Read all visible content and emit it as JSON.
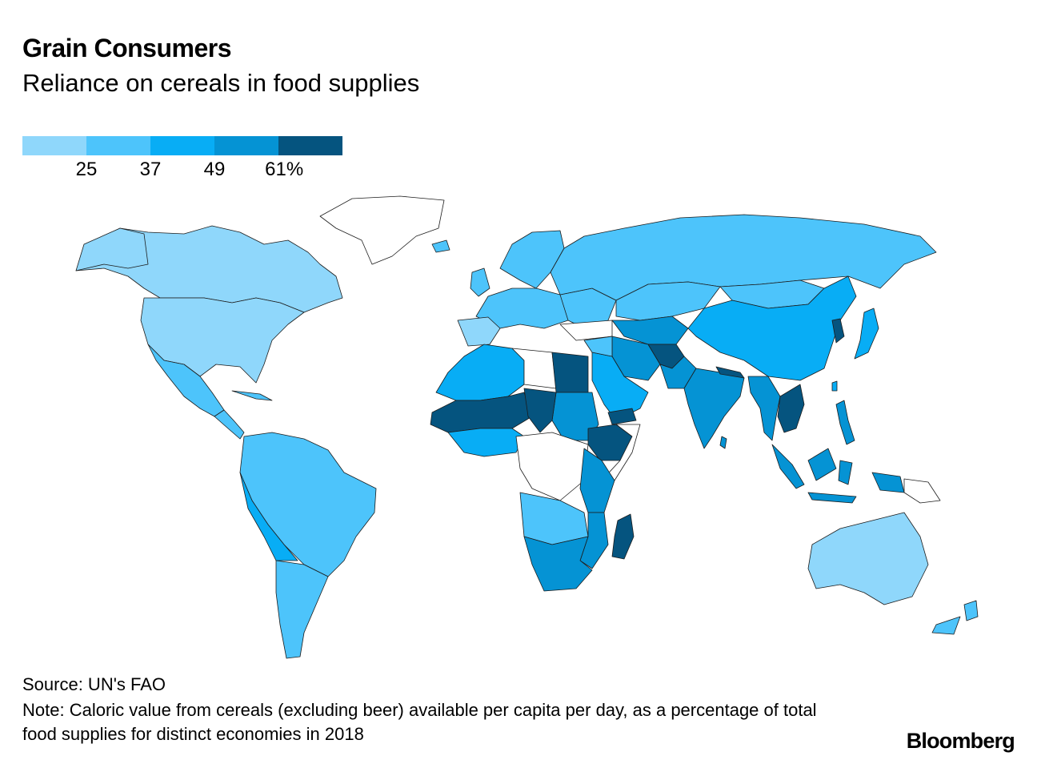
{
  "title": "Grain Consumers",
  "subtitle": "Reliance on cereals in food supplies",
  "legend": {
    "colors": [
      "#8fd7fb",
      "#4dc4fb",
      "#08adf5",
      "#0593d4",
      "#05547f"
    ],
    "ticks": [
      "25",
      "37",
      "49",
      "61%"
    ]
  },
  "map_colors": {
    "no_data": "#ffffff",
    "c1": "#8fd7fb",
    "c2": "#4dc4fb",
    "c3": "#08adf5",
    "c4": "#0593d4",
    "c5": "#05547f"
  },
  "source": "Source: UN's FAO",
  "note": "Note: Caloric value from cereals (excluding beer) available per capita per day, as a percentage of total food supplies for distinct economies in 2018",
  "brand": "Bloomberg"
}
